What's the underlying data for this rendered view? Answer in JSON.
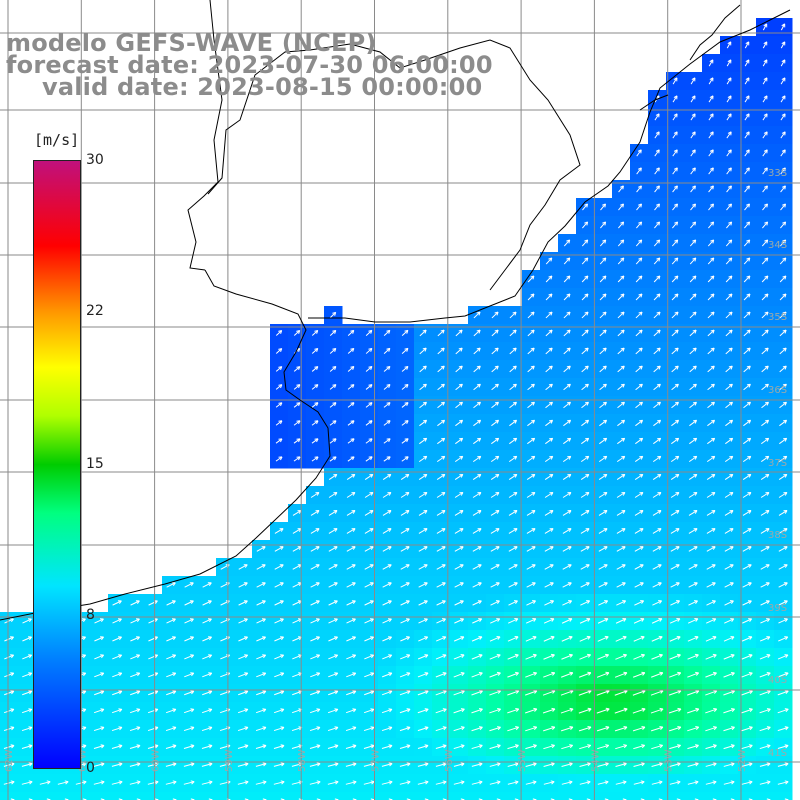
{
  "title": {
    "line1": "modelo GEFS-WAVE (NCEP)",
    "line2": "forecast date: 2023-07-30 06:00:00",
    "line3": "valid date: 2023-08-15 00:00:00"
  },
  "colorbar": {
    "unit": "[m/s]",
    "ticks": [
      "30",
      "22",
      "15",
      "8",
      "0"
    ],
    "tick_values": [
      30,
      22,
      15,
      8,
      0
    ],
    "range": [
      0,
      30
    ]
  },
  "map": {
    "lat_labels": [
      "33S",
      "34S",
      "35S",
      "36S",
      "37S",
      "38S",
      "39S",
      "40S",
      "41S"
    ],
    "lon_labels": [
      "62W",
      "61W",
      "60W",
      "59W",
      "58W",
      "57W",
      "56W",
      "55W",
      "54W",
      "53W",
      "52W"
    ],
    "colors": {
      "land": "#ffffff",
      "grid": "#8a8a8a",
      "coast": "#000000",
      "arrow": "#ffffff",
      "label": "#8c8c8c"
    }
  }
}
